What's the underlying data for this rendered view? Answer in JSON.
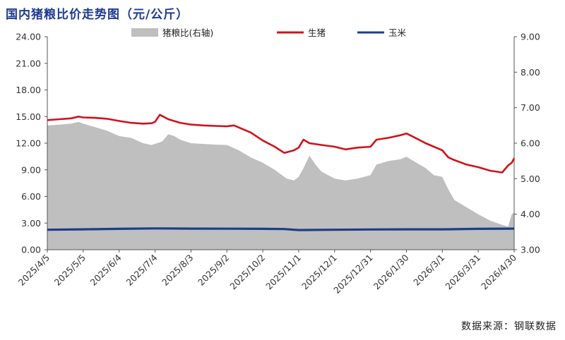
{
  "chart_data": {
    "type": "line",
    "title": "国内猪粮比价走势图（元/公斤）",
    "source": "数据来源：钢联数据",
    "y_left": {
      "ticks": [
        "0.00",
        "3.00",
        "6.00",
        "9.00",
        "12.00",
        "15.00",
        "18.00",
        "21.00",
        "24.00"
      ],
      "min": 0,
      "max": 24
    },
    "y_right": {
      "ticks": [
        "3.00",
        "4.00",
        "5.00",
        "6.00",
        "7.00",
        "8.00",
        "9.00"
      ],
      "min": 3,
      "max": 9
    },
    "x_ticks": [
      "2025/4/5",
      "2025/5/5",
      "2025/6/4",
      "2025/7/4",
      "2025/8/3",
      "2025/9/2",
      "2025/10/2",
      "2025/11/1",
      "2025/12/1",
      "2025/12/31",
      "2026/1/30",
      "2026/3/1",
      "2026/3/31",
      "2026/4/30"
    ],
    "x_range": [
      "2025/4/5",
      "2026/4/30"
    ],
    "legend_position": "top",
    "series": [
      {
        "name": "猪粮比(右轴)",
        "type": "area",
        "axis": "right",
        "color": "#bfbfbf",
        "points": [
          [
            "2025/4/5",
            6.5
          ],
          [
            "2025/4/15",
            6.52
          ],
          [
            "2025/4/25",
            6.55
          ],
          [
            "2025/5/1",
            6.6
          ],
          [
            "2025/5/5",
            6.55
          ],
          [
            "2025/5/15",
            6.45
          ],
          [
            "2025/5/25",
            6.35
          ],
          [
            "2025/6/4",
            6.2
          ],
          [
            "2025/6/14",
            6.15
          ],
          [
            "2025/6/24",
            6.0
          ],
          [
            "2025/7/1",
            5.95
          ],
          [
            "2025/7/4",
            5.98
          ],
          [
            "2025/7/10",
            6.05
          ],
          [
            "2025/7/15",
            6.25
          ],
          [
            "2025/7/20",
            6.2
          ],
          [
            "2025/7/25",
            6.1
          ],
          [
            "2025/8/3",
            6.0
          ],
          [
            "2025/8/13",
            5.98
          ],
          [
            "2025/8/23",
            5.96
          ],
          [
            "2025/9/2",
            5.95
          ],
          [
            "2025/9/12",
            5.8
          ],
          [
            "2025/9/22",
            5.6
          ],
          [
            "2025/10/2",
            5.45
          ],
          [
            "2025/10/12",
            5.25
          ],
          [
            "2025/10/22",
            5.0
          ],
          [
            "2025/10/28",
            4.95
          ],
          [
            "2025/11/1",
            5.05
          ],
          [
            "2025/11/5",
            5.3
          ],
          [
            "2025/11/10",
            5.65
          ],
          [
            "2025/11/15",
            5.4
          ],
          [
            "2025/11/20",
            5.2
          ],
          [
            "2025/12/1",
            5.0
          ],
          [
            "2025/12/10",
            4.95
          ],
          [
            "2025/12/20",
            5.0
          ],
          [
            "2025/12/31",
            5.1
          ],
          [
            "2026/1/5",
            5.4
          ],
          [
            "2026/1/15",
            5.5
          ],
          [
            "2026/1/25",
            5.55
          ],
          [
            "2026/1/30",
            5.62
          ],
          [
            "2026/2/5",
            5.5
          ],
          [
            "2026/2/15",
            5.3
          ],
          [
            "2026/2/22",
            5.1
          ],
          [
            "2026/3/1",
            5.05
          ],
          [
            "2026/3/6",
            4.7
          ],
          [
            "2026/3/11",
            4.4
          ],
          [
            "2026/3/21",
            4.2
          ],
          [
            "2026/3/31",
            4.0
          ],
          [
            "2026/4/10",
            3.82
          ],
          [
            "2026/4/20",
            3.7
          ],
          [
            "2026/4/25",
            3.65
          ],
          [
            "2026/4/28",
            4.0
          ],
          [
            "2026/4/30",
            4.05
          ]
        ]
      },
      {
        "name": "生猪",
        "type": "line",
        "axis": "left",
        "color": "#d0121b",
        "points": [
          [
            "2025/4/5",
            14.6
          ],
          [
            "2025/4/15",
            14.7
          ],
          [
            "2025/4/25",
            14.8
          ],
          [
            "2025/5/1",
            15.0
          ],
          [
            "2025/5/5",
            14.9
          ],
          [
            "2025/5/15",
            14.85
          ],
          [
            "2025/5/25",
            14.75
          ],
          [
            "2025/6/4",
            14.5
          ],
          [
            "2025/6/14",
            14.3
          ],
          [
            "2025/6/24",
            14.2
          ],
          [
            "2025/7/1",
            14.25
          ],
          [
            "2025/7/4",
            14.4
          ],
          [
            "2025/7/8",
            15.2
          ],
          [
            "2025/7/15",
            14.7
          ],
          [
            "2025/7/25",
            14.3
          ],
          [
            "2025/8/3",
            14.1
          ],
          [
            "2025/8/13",
            14.0
          ],
          [
            "2025/8/23",
            13.95
          ],
          [
            "2025/9/2",
            13.9
          ],
          [
            "2025/9/8",
            14.0
          ],
          [
            "2025/9/15",
            13.6
          ],
          [
            "2025/9/22",
            13.2
          ],
          [
            "2025/10/2",
            12.3
          ],
          [
            "2025/10/12",
            11.6
          ],
          [
            "2025/10/20",
            10.9
          ],
          [
            "2025/10/28",
            11.2
          ],
          [
            "2025/11/1",
            11.5
          ],
          [
            "2025/11/5",
            12.4
          ],
          [
            "2025/11/10",
            12.0
          ],
          [
            "2025/11/20",
            11.8
          ],
          [
            "2025/12/1",
            11.6
          ],
          [
            "2025/12/10",
            11.3
          ],
          [
            "2025/12/20",
            11.5
          ],
          [
            "2025/12/31",
            11.6
          ],
          [
            "2026/1/5",
            12.4
          ],
          [
            "2026/1/15",
            12.6
          ],
          [
            "2026/1/25",
            12.9
          ],
          [
            "2026/1/30",
            13.1
          ],
          [
            "2026/2/5",
            12.7
          ],
          [
            "2026/2/15",
            12.0
          ],
          [
            "2026/2/22",
            11.6
          ],
          [
            "2026/3/1",
            11.2
          ],
          [
            "2026/3/6",
            10.4
          ],
          [
            "2026/3/11",
            10.1
          ],
          [
            "2026/3/21",
            9.6
          ],
          [
            "2026/3/31",
            9.3
          ],
          [
            "2026/4/10",
            8.9
          ],
          [
            "2026/4/20",
            8.7
          ],
          [
            "2026/4/25",
            9.5
          ],
          [
            "2026/4/28",
            9.8
          ],
          [
            "2026/4/30",
            10.3
          ]
        ]
      },
      {
        "name": "玉米",
        "type": "line",
        "axis": "left",
        "color": "#1f3c88",
        "points": [
          [
            "2025/4/5",
            2.25
          ],
          [
            "2025/5/5",
            2.3
          ],
          [
            "2025/6/4",
            2.35
          ],
          [
            "2025/7/4",
            2.4
          ],
          [
            "2025/8/3",
            2.38
          ],
          [
            "2025/9/2",
            2.37
          ],
          [
            "2025/10/2",
            2.35
          ],
          [
            "2025/10/20",
            2.33
          ],
          [
            "2025/10/28",
            2.25
          ],
          [
            "2025/11/1",
            2.22
          ],
          [
            "2025/12/1",
            2.25
          ],
          [
            "2025/12/31",
            2.28
          ],
          [
            "2026/1/30",
            2.3
          ],
          [
            "2026/3/1",
            2.3
          ],
          [
            "2026/3/31",
            2.35
          ],
          [
            "2026/4/30",
            2.38
          ]
        ]
      }
    ]
  }
}
